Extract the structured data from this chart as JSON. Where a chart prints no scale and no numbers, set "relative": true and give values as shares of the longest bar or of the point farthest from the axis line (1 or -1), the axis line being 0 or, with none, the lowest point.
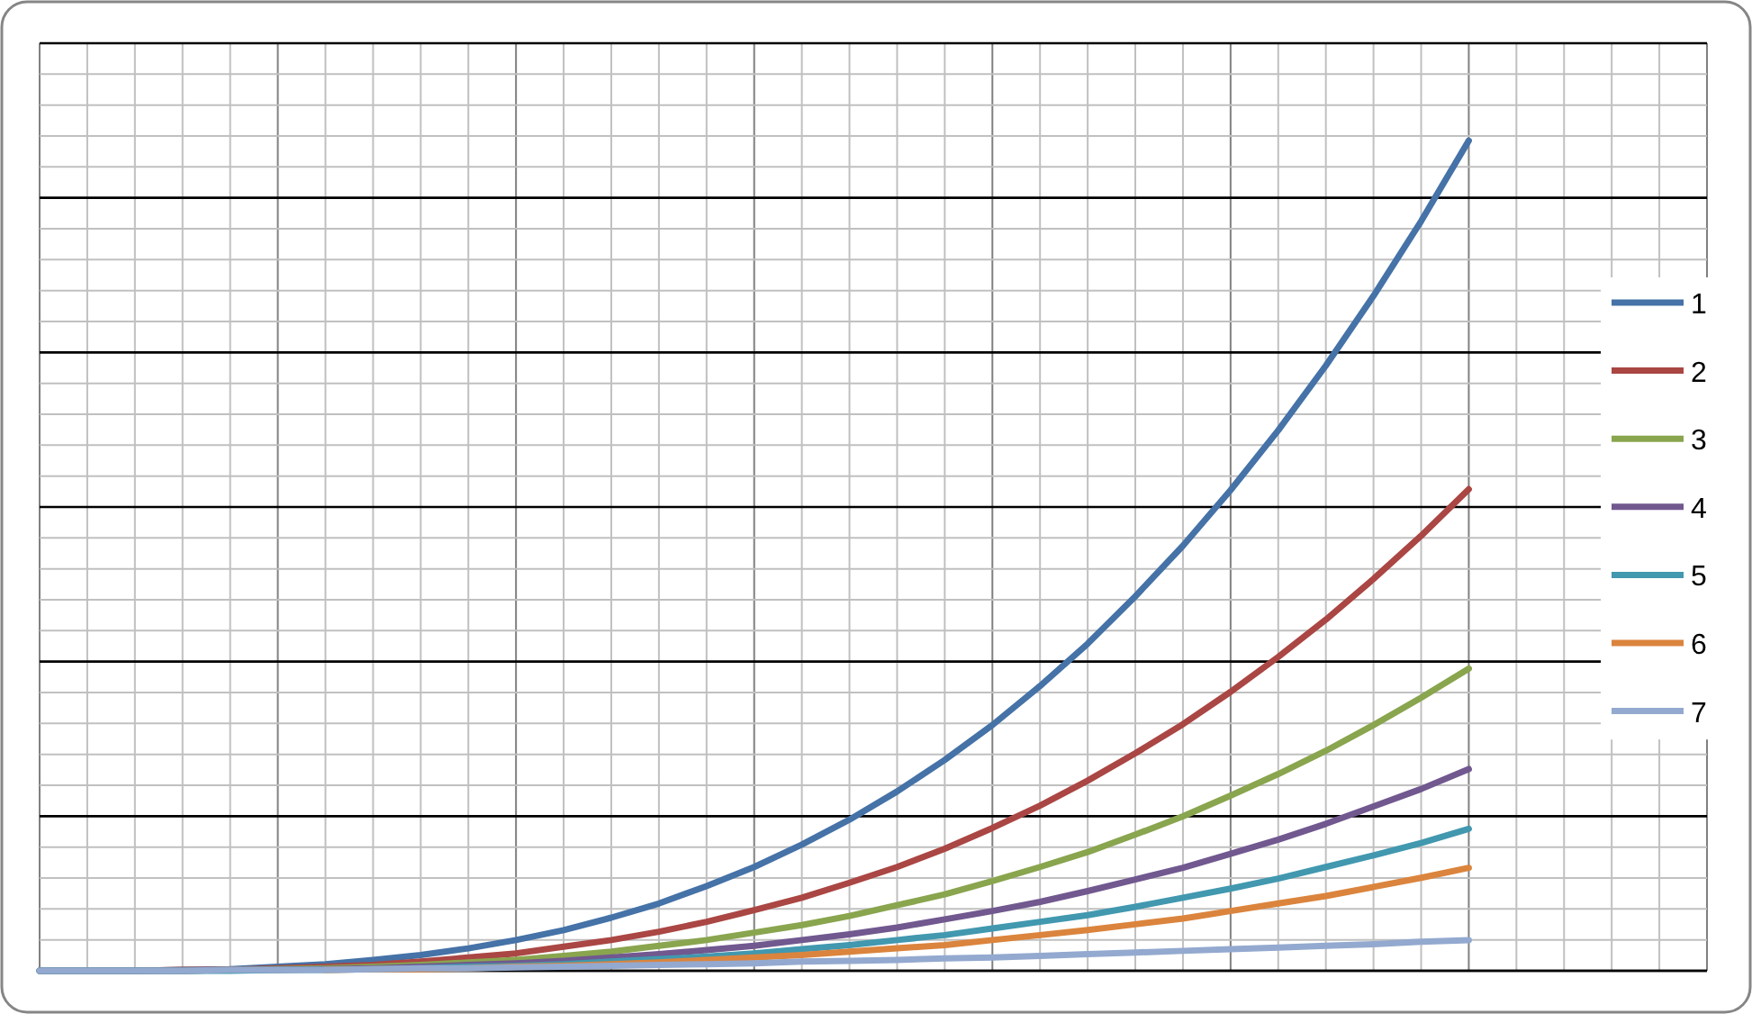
{
  "chart_data": {
    "type": "line",
    "relative": true,
    "grid": true,
    "legend": "right",
    "line_style": "solid",
    "marker": "none",
    "categories": [
      null,
      null,
      null,
      null,
      null,
      null,
      null,
      null,
      null,
      null,
      null,
      null,
      null,
      null,
      null,
      null,
      null,
      null,
      null,
      null,
      null,
      null,
      null,
      null,
      null,
      null,
      null,
      null,
      null,
      null,
      null
    ],
    "series": [
      {
        "name": "1",
        "color": "#4572a7",
        "values": [
          0,
          0,
          0,
          0.001,
          0.002,
          0.005,
          0.008,
          0.013,
          0.019,
          0.027,
          0.037,
          0.049,
          0.064,
          0.081,
          0.102,
          0.125,
          0.152,
          0.182,
          0.216,
          0.254,
          0.296,
          0.343,
          0.394,
          0.451,
          0.512,
          0.579,
          0.651,
          0.729,
          0.813,
          0.903,
          1
        ]
      },
      {
        "name": "2",
        "color": "#aa4643",
        "values": [
          null,
          null,
          0,
          0.001,
          0.001,
          0.003,
          0.005,
          0.007,
          0.011,
          0.016,
          0.021,
          0.029,
          0.037,
          0.047,
          0.059,
          0.073,
          0.088,
          0.106,
          0.125,
          0.147,
          0.172,
          0.199,
          0.229,
          0.262,
          0.297,
          0.336,
          0.378,
          0.423,
          0.472,
          0.524,
          0.58
        ]
      },
      {
        "name": "3",
        "color": "#89a54e",
        "values": [
          0,
          0,
          0,
          0,
          0.001,
          0.002,
          0.003,
          0.005,
          0.007,
          0.01,
          0.013,
          0.018,
          0.023,
          0.03,
          0.037,
          0.046,
          0.055,
          0.066,
          0.079,
          0.092,
          0.108,
          0.125,
          0.143,
          0.164,
          0.186,
          0.211,
          0.237,
          0.265,
          0.296,
          0.329,
          0.364
        ]
      },
      {
        "name": "4",
        "color": "#71588f",
        "values": [
          0,
          0,
          0,
          0,
          0.001,
          0.001,
          0.002,
          0.003,
          0.005,
          0.007,
          0.009,
          0.012,
          0.016,
          0.02,
          0.025,
          0.03,
          0.037,
          0.044,
          0.052,
          0.062,
          0.072,
          0.083,
          0.096,
          0.11,
          0.124,
          0.141,
          0.158,
          0.177,
          0.198,
          0.219,
          0.243
        ]
      },
      {
        "name": "5",
        "color": "#4198af",
        "values": [
          0,
          0,
          0,
          0,
          0,
          0.001,
          0.001,
          0.002,
          0.003,
          0.005,
          0.006,
          0.008,
          0.011,
          0.014,
          0.017,
          0.021,
          0.026,
          0.031,
          0.037,
          0.043,
          0.051,
          0.059,
          0.067,
          0.077,
          0.088,
          0.099,
          0.111,
          0.125,
          0.139,
          0.154,
          0.171
        ]
      },
      {
        "name": "6",
        "color": "#db843d",
        "values": [
          null,
          null,
          null,
          null,
          null,
          null,
          0.001,
          0.002,
          0.002,
          0.003,
          0.005,
          0.006,
          0.008,
          0.01,
          0.013,
          0.016,
          0.019,
          0.023,
          0.027,
          0.031,
          0.037,
          0.043,
          0.049,
          0.056,
          0.063,
          0.072,
          0.081,
          0.09,
          0.101,
          0.112,
          0.124
        ]
      },
      {
        "name": "7",
        "color": "#93a9cf",
        "values": [
          0,
          0,
          0,
          0,
          0.001,
          0.001,
          0.001,
          0.002,
          0.003,
          0.003,
          0.004,
          0.005,
          0.006,
          0.007,
          0.008,
          0.009,
          0.011,
          0.012,
          0.013,
          0.015,
          0.016,
          0.018,
          0.02,
          0.022,
          0.024,
          0.026,
          0.028,
          0.03,
          0.032,
          0.035,
          0.037
        ]
      }
    ]
  }
}
